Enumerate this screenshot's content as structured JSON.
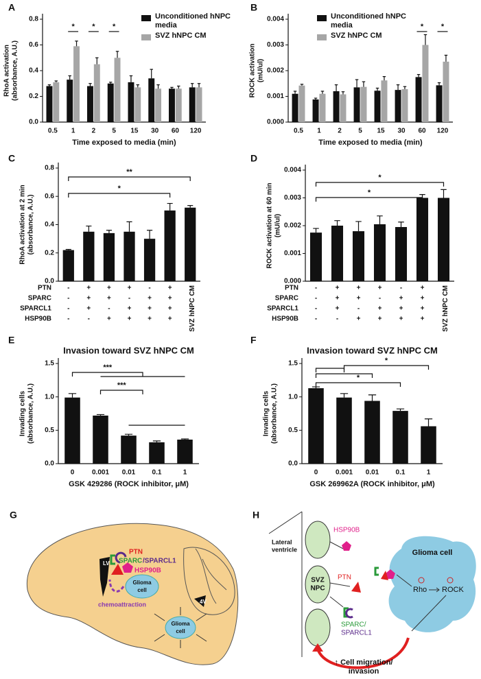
{
  "chart_data": [
    {
      "type": "bar",
      "panel_label": "A",
      "ylabel": [
        "RhoA activation",
        "(absorbance, A.U.)"
      ],
      "xlabel": "Time exposed to media (min)",
      "categories": [
        "0.5",
        "1",
        "2",
        "5",
        "15",
        "30",
        "60",
        "120"
      ],
      "series": [
        {
          "name": "Unconditioned hNPC media",
          "color": "#111111",
          "values": [
            0.28,
            0.33,
            0.28,
            0.3,
            0.31,
            0.34,
            0.26,
            0.27
          ],
          "errors": [
            0.01,
            0.03,
            0.02,
            0.01,
            0.05,
            0.07,
            0.01,
            0.03
          ]
        },
        {
          "name": "SVZ hNPC CM",
          "color": "#a6a6a6",
          "values": [
            0.31,
            0.59,
            0.45,
            0.5,
            0.27,
            0.26,
            0.26,
            0.27
          ],
          "errors": [
            0.01,
            0.04,
            0.05,
            0.05,
            0.02,
            0.03,
            0.02,
            0.03
          ]
        }
      ],
      "ylim": [
        0,
        0.8
      ],
      "yticks": [
        {
          "value": 0,
          "label": "0.0"
        },
        0.2,
        0.4,
        0.6,
        0.8
      ],
      "annotations": [
        "*",
        "*",
        "*"
      ]
    },
    {
      "type": "bar",
      "panel_label": "B",
      "ylabel": [
        "ROCK activation",
        "(mU/ul)"
      ],
      "xlabel": "Time exposed to media (min)",
      "categories": [
        "0.5",
        "1",
        "2",
        "5",
        "15",
        "30",
        "60",
        "120"
      ],
      "series": [
        {
          "name": "Unconditioned hNPC media",
          "color": "#111111",
          "values": [
            0.0011,
            0.00088,
            0.0012,
            0.00135,
            0.00122,
            0.00125,
            0.00175,
            0.00143
          ],
          "errors": [
            0.0001,
            5e-05,
            0.00025,
            0.0003,
            0.0001,
            0.0002,
            0.0001,
            0.0001
          ]
        },
        {
          "name": "SVZ hNPC CM",
          "color": "#a6a6a6",
          "values": [
            0.00142,
            0.0011,
            0.00108,
            0.00137,
            0.00162,
            0.00128,
            0.003,
            0.00235
          ],
          "errors": [
            5e-05,
            0.0001,
            0.0001,
            0.0002,
            0.00015,
            0.0001,
            0.0004,
            0.00025
          ]
        }
      ],
      "ylim": [
        0,
        0.004
      ],
      "yticks": [
        {
          "value": 0,
          "label": "0.000"
        },
        0.001,
        0.002,
        0.003,
        0.004
      ],
      "annotations": [
        "*",
        "*"
      ]
    },
    {
      "type": "bar",
      "panel_label": "C",
      "ylabel": [
        "RhoA activation at 2 min",
        "(absorbance, A.U.)"
      ],
      "categories": [
        null,
        null,
        null,
        null,
        null,
        null,
        "SVZ hNPC CM"
      ],
      "color": "#111111",
      "values": [
        0.22,
        0.35,
        0.34,
        0.35,
        0.3,
        0.5,
        0.52
      ],
      "errors": [
        0.005,
        0.04,
        0.02,
        0.07,
        0.06,
        0.05,
        0.015
      ],
      "condition_rows": [
        {
          "name": "PTN",
          "signs": [
            "-",
            "+",
            "+",
            "+",
            "-",
            "+"
          ]
        },
        {
          "name": "SPARC",
          "signs": [
            "-",
            "+",
            "+",
            "-",
            "+",
            "+"
          ]
        },
        {
          "name": "SPARCL1",
          "signs": [
            "-",
            "+",
            "-",
            "+",
            "+",
            "+"
          ]
        },
        {
          "name": "HSP90B",
          "signs": [
            "-",
            "-",
            "+",
            "+",
            "+",
            "+"
          ]
        }
      ],
      "ylim": [
        0,
        0.8
      ],
      "yticks": [
        {
          "value": 0,
          "label": "0.0"
        },
        0.2,
        0.4,
        0.6,
        0.8
      ],
      "annotations": [
        "**",
        "*"
      ]
    },
    {
      "type": "bar",
      "panel_label": "D",
      "ylabel": [
        "ROCK activation at 60 min",
        "(mU/ul)"
      ],
      "categories": [
        null,
        null,
        null,
        null,
        null,
        null,
        "SVZ hNPC CM"
      ],
      "color": "#111111",
      "values": [
        0.00175,
        0.002,
        0.0018,
        0.00205,
        0.00195,
        0.003,
        0.003
      ],
      "errors": [
        0.00015,
        0.00018,
        0.00035,
        0.0003,
        0.00018,
        0.00012,
        0.0003
      ],
      "condition_rows": [
        {
          "name": "PTN",
          "signs": [
            "-",
            "+",
            "+",
            "+",
            "-",
            "+"
          ]
        },
        {
          "name": "SPARC",
          "signs": [
            "-",
            "+",
            "+",
            "-",
            "+",
            "+"
          ]
        },
        {
          "name": "SPARCL1",
          "signs": [
            "-",
            "+",
            "-",
            "+",
            "+",
            "+"
          ]
        },
        {
          "name": "HSP90B",
          "signs": [
            "-",
            "-",
            "+",
            "+",
            "+",
            "+"
          ]
        }
      ],
      "ylim": [
        0,
        0.004
      ],
      "yticks": [
        {
          "value": 0,
          "label": "0.000"
        },
        0.001,
        0.002,
        0.003,
        0.004
      ],
      "annotations": [
        "*",
        "*"
      ]
    },
    {
      "type": "bar",
      "panel_label": "E",
      "title": "Invasion toward SVZ hNPC CM",
      "ylabel": [
        "Invading cells",
        "(absorbance, A.U.)"
      ],
      "xlabel": "GSK 429286 (ROCK inhibitor, μM)",
      "categories": [
        "0",
        "0.001",
        "0.01",
        "0.1",
        "1"
      ],
      "color": "#111111",
      "values": [
        0.99,
        0.72,
        0.42,
        0.32,
        0.36
      ],
      "errors": [
        0.06,
        0.015,
        0.02,
        0.02,
        0.01
      ],
      "ylim": [
        0,
        1.5
      ],
      "yticks": [
        {
          "value": 0,
          "label": "0.0"
        },
        0.5,
        {
          "value": 1,
          "label": "1.0"
        },
        1.5
      ],
      "annotations": [
        "***",
        "***"
      ]
    },
    {
      "type": "bar",
      "panel_label": "F",
      "title": "Invasion toward SVZ hNPC CM",
      "ylabel": [
        "Invading cells",
        "(absorbance, A.U.)"
      ],
      "xlabel": "GSK 269962A (ROCK inhibitor, μM)",
      "categories": [
        "0",
        "0.001",
        "0.01",
        "0.1",
        "1"
      ],
      "color": "#111111",
      "values": [
        1.13,
        0.99,
        0.94,
        0.79,
        0.56
      ],
      "errors": [
        0.02,
        0.06,
        0.09,
        0.03,
        0.11
      ],
      "ylim": [
        0,
        1.5
      ],
      "yticks": [
        {
          "value": 0,
          "label": "0.0"
        },
        0.5,
        {
          "value": 1,
          "label": "1.0"
        },
        1.5
      ],
      "annotations": [
        "*",
        "*"
      ]
    }
  ],
  "panel_g": {
    "label": "G",
    "ptn": "PTN",
    "sparc": "SPARC",
    "sparcl1": "/SPARCL1",
    "hsp90b": "HSP90B",
    "lv": "LV",
    "glioma_cell_1": [
      "Glioma",
      "cell"
    ],
    "chemoattraction": "chemoattraction",
    "v4": "4V",
    "glioma_cell_2": [
      "Glioma",
      "cell"
    ]
  },
  "panel_h": {
    "label": "H",
    "lateral_ventricle": [
      "Lateral",
      "ventricle"
    ],
    "hsp90b": "HSP90B",
    "svz_npc": [
      "SVZ",
      "NPC"
    ],
    "ptn": "PTN",
    "sparc": [
      "SPARC/",
      "SPARCL1"
    ],
    "glioma_cell": "Glioma cell",
    "rho": "Rho",
    "rock": "ROCK",
    "outcome": [
      "↑ Cell migration/",
      "invasion"
    ]
  }
}
